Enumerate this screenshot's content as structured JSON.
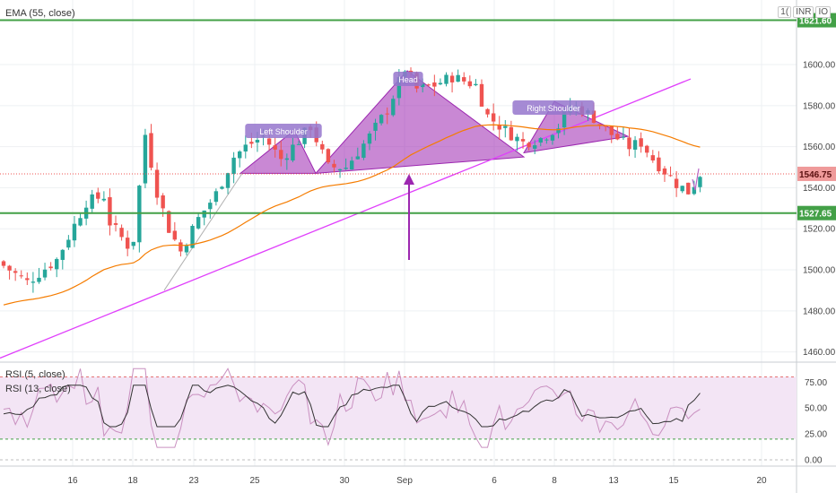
{
  "indicators": {
    "ema_label": "EMA (55, close)",
    "rsi5_label": "RSI (5, close)",
    "rsi13_label": "RSI (13, close)"
  },
  "corner_controls": {
    "icon_label": "1(",
    "currency": "INR",
    "scale": "IO"
  },
  "chart_data": {
    "type": "candlestick",
    "instrument_timeframe": "daily",
    "x_labels": [
      "16",
      "18",
      "23",
      "25",
      "30",
      "Sep",
      "6",
      "8",
      "13",
      "15",
      "20"
    ],
    "price_axis": {
      "ticks": [
        1460,
        1480,
        1500,
        1520,
        1540,
        1560,
        1580,
        1600
      ],
      "range": [
        1452,
        1642
      ]
    },
    "price_labels": {
      "upper_resistance": "1621.60",
      "last_price": "1546.75",
      "lower_support": "1527.65"
    },
    "horizontal_levels": [
      1621.6,
      1527.65
    ],
    "last_price": 1546.75,
    "annotations": [
      "Left Shoulder",
      "Head",
      "Right Shoulder"
    ],
    "rsi_axis": {
      "ticks": [
        "75.00",
        "50.00",
        "25.00",
        "0.00"
      ],
      "range": [
        0,
        100
      ],
      "bands": [
        80,
        20
      ]
    },
    "colors": {
      "up": "#26a69a",
      "down": "#ef5350",
      "ema": "#f57c00",
      "pattern": "#9c27b0",
      "levels": "#43a047",
      "rsi5": "#c990c0",
      "rsi13": "#333333"
    }
  }
}
